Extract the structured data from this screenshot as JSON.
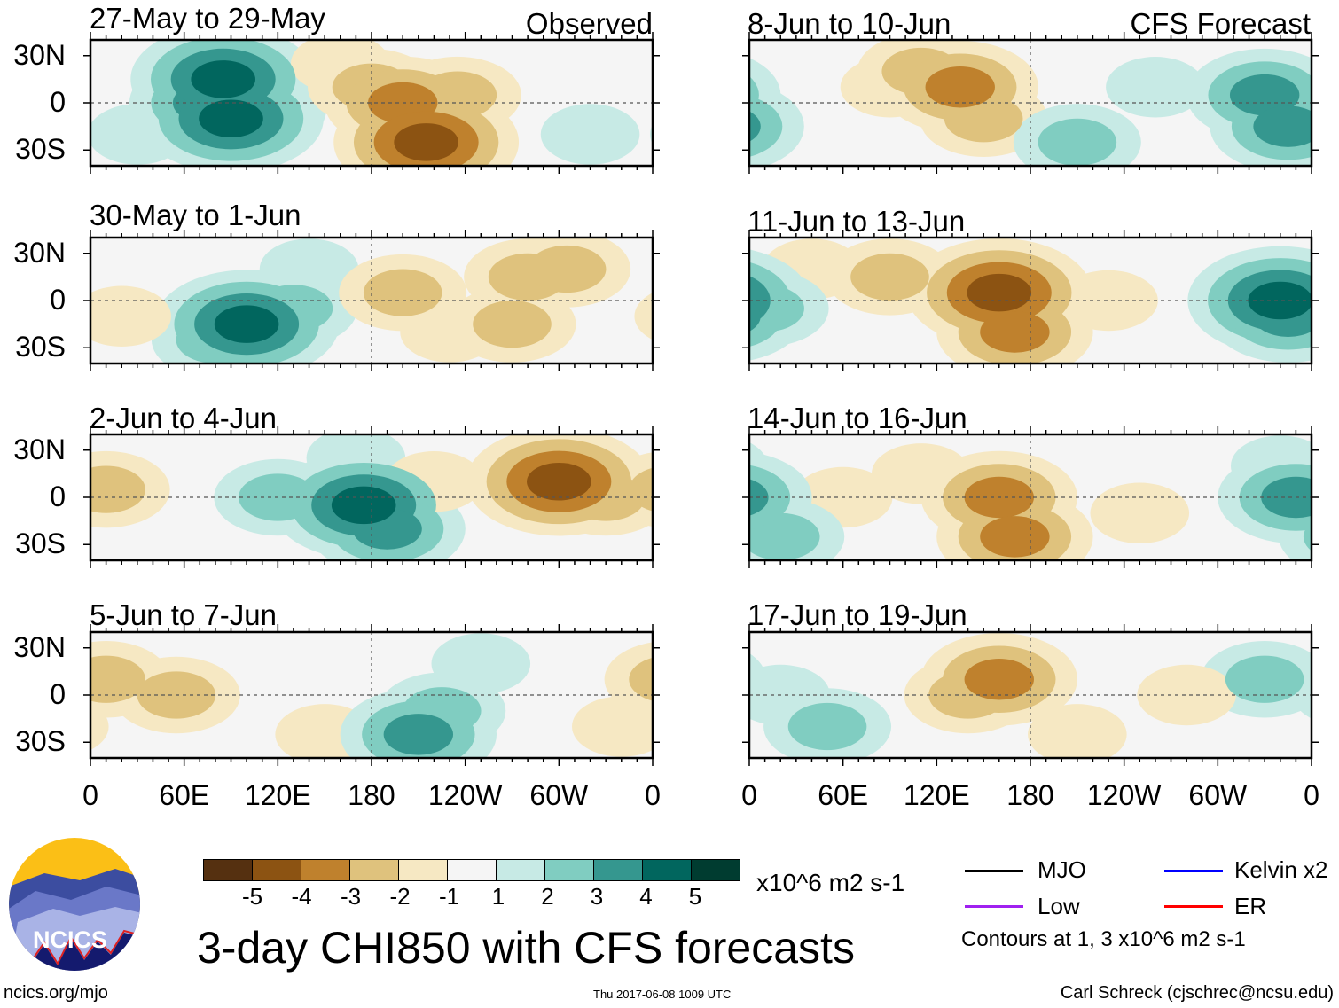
{
  "figure_title": "3-day CHI850 with CFS forecasts",
  "column_labels": {
    "left": "Observed",
    "right": "CFS Forecast"
  },
  "colorbar": {
    "units": "x10^6 m2 s-1",
    "tick_labels": [
      "-5",
      "-4",
      "-3",
      "-2",
      "-1",
      "1",
      "2",
      "3",
      "4",
      "5"
    ],
    "colors": [
      "#553010",
      "#8c5312",
      "#bf812d",
      "#dfc27d",
      "#f6e8c3",
      "#f5f5f5",
      "#c7eae5",
      "#80cdc1",
      "#35978f",
      "#01665e",
      "#003c30"
    ]
  },
  "legend": {
    "items": [
      {
        "label": "MJO",
        "color": "#000000"
      },
      {
        "label": "Kelvin x2",
        "color": "#0000ff"
      },
      {
        "label": "Low",
        "color": "#a020f0"
      },
      {
        "label": "ER",
        "color": "#ff0000"
      }
    ],
    "note": "Contours at 1, 3 x10^6 m2 s-1"
  },
  "footer": {
    "left": "ncics.org/mjo",
    "center": "Thu 2017-06-08 1009 UTC",
    "right": "Carl Schreck (cjschrec@ncsu.edu)"
  },
  "logo_text": "NCICS",
  "chart_data": {
    "type": "heatmap",
    "title": "3-day CHI850 with CFS forecasts",
    "x_ticks": [
      "0",
      "60E",
      "120E",
      "180",
      "120W",
      "60W",
      "0"
    ],
    "y_ticks": [
      "30N",
      "0",
      "30S"
    ],
    "xlim": [
      0,
      360
    ],
    "ylim": [
      -40,
      40
    ],
    "panels": [
      {
        "title": "27-May to 29-May",
        "column": "left",
        "anomaly_centers": [
          [
            75,
            0,
            3
          ],
          [
            90,
            -10,
            4
          ],
          [
            85,
            15,
            4
          ],
          [
            110,
            -5,
            2
          ],
          [
            30,
            -20,
            1
          ],
          [
            180,
            10,
            -2
          ],
          [
            200,
            0,
            -3
          ],
          [
            215,
            -25,
            -4
          ],
          [
            235,
            5,
            -2
          ],
          [
            160,
            25,
            -1
          ],
          [
            320,
            -20,
            1
          ]
        ]
      },
      {
        "title": "30-May to 1-Jun",
        "column": "left",
        "anomaly_centers": [
          [
            100,
            -15,
            4
          ],
          [
            130,
            -5,
            2
          ],
          [
            140,
            20,
            1
          ],
          [
            80,
            -25,
            2
          ],
          [
            200,
            5,
            -2
          ],
          [
            280,
            15,
            -2
          ],
          [
            270,
            -15,
            -2
          ],
          [
            305,
            20,
            -2
          ],
          [
            20,
            -10,
            -1
          ],
          [
            230,
            -20,
            -1
          ]
        ]
      },
      {
        "title": "2-Jun to 4-Jun",
        "column": "left",
        "anomaly_centers": [
          [
            10,
            5,
            -2
          ],
          [
            300,
            10,
            -4
          ],
          [
            330,
            0,
            -2
          ],
          [
            120,
            0,
            2
          ],
          [
            175,
            -5,
            4
          ],
          [
            190,
            -20,
            3
          ],
          [
            170,
            25,
            1
          ],
          [
            220,
            10,
            -1
          ]
        ]
      },
      {
        "title": "5-Jun to 7-Jun",
        "column": "left",
        "anomaly_centers": [
          [
            10,
            10,
            -2
          ],
          [
            55,
            0,
            -2
          ],
          [
            150,
            -25,
            -1
          ],
          [
            225,
            -10,
            2
          ],
          [
            210,
            -25,
            3
          ],
          [
            250,
            20,
            1
          ],
          [
            340,
            -20,
            -1
          ]
        ]
      },
      {
        "title": "8-Jun to 10-Jun",
        "column": "right",
        "anomaly_centers": [
          [
            110,
            20,
            -2
          ],
          [
            135,
            10,
            -3
          ],
          [
            150,
            -10,
            -2
          ],
          [
            90,
            10,
            -1
          ],
          [
            330,
            5,
            3
          ],
          [
            345,
            -15,
            3
          ],
          [
            210,
            -25,
            2
          ],
          [
            260,
            10,
            1
          ]
        ]
      },
      {
        "title": "11-Jun to 13-Jun",
        "column": "right",
        "anomaly_centers": [
          [
            90,
            15,
            -2
          ],
          [
            160,
            5,
            -4
          ],
          [
            170,
            -20,
            -3
          ],
          [
            40,
            20,
            -1
          ],
          [
            10,
            -5,
            2
          ],
          [
            340,
            0,
            4
          ],
          [
            345,
            -10,
            3
          ],
          [
            230,
            0,
            -1
          ]
        ]
      },
      {
        "title": "14-Jun to 16-Jun",
        "column": "right",
        "anomaly_centers": [
          [
            160,
            0,
            -3
          ],
          [
            170,
            -25,
            -3
          ],
          [
            110,
            15,
            -1
          ],
          [
            60,
            0,
            -1
          ],
          [
            20,
            -25,
            2
          ],
          [
            350,
            0,
            3
          ],
          [
            340,
            20,
            1
          ],
          [
            250,
            -10,
            -1
          ]
        ]
      },
      {
        "title": "17-Jun to 19-Jun",
        "column": "right",
        "anomaly_centers": [
          [
            160,
            10,
            -3
          ],
          [
            140,
            0,
            -2
          ],
          [
            210,
            -25,
            -1
          ],
          [
            330,
            10,
            2
          ],
          [
            50,
            -20,
            2
          ],
          [
            20,
            0,
            1
          ],
          [
            280,
            0,
            -1
          ]
        ]
      }
    ]
  }
}
